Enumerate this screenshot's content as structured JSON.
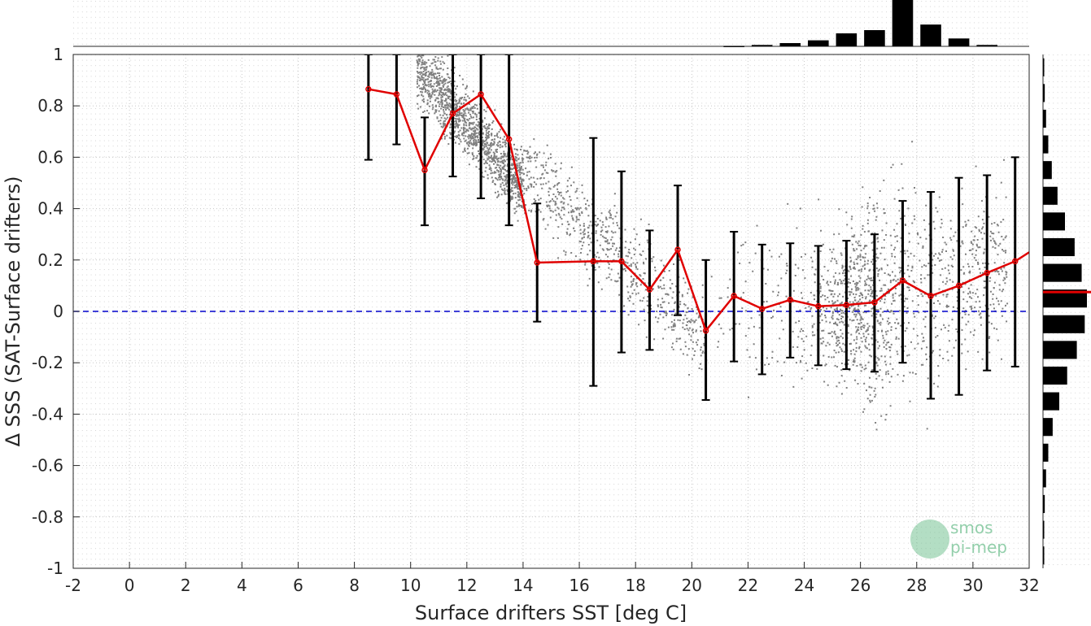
{
  "chart_data": {
    "type": "scatter",
    "xlabel": "Surface drifters SST [deg C]",
    "ylabel": "Δ SSS (SAT-Surface drifters)",
    "xlim": [
      -2,
      32
    ],
    "ylim": [
      -1,
      1
    ],
    "xticks": [
      -2,
      0,
      2,
      4,
      6,
      8,
      10,
      12,
      14,
      16,
      18,
      20,
      22,
      24,
      26,
      28,
      30,
      32
    ],
    "yticks": [
      1,
      0.8,
      0.6,
      0.4,
      0.2,
      0,
      -0.2,
      -0.4,
      -0.6,
      -0.8,
      -1
    ],
    "grid": true,
    "reference_line": {
      "y": 0,
      "color": "#0000cc",
      "style": "dashed"
    },
    "scatter_color": "#808080",
    "mean_line_color": "#e00000",
    "errorbar_color": "#000000",
    "binned_means": {
      "x": [
        8.5,
        9.5,
        10.5,
        11.5,
        12.5,
        13.5,
        14.5,
        16.5,
        17.5,
        18.5,
        19.5,
        20.5,
        21.5,
        22.5,
        23.5,
        24.5,
        25.5,
        26.5,
        27.5,
        28.5,
        29.5,
        30.5,
        31.5,
        32.0
      ],
      "y": [
        0.865,
        0.845,
        0.55,
        0.77,
        0.845,
        0.67,
        0.19,
        0.195,
        0.195,
        0.085,
        0.24,
        -0.075,
        0.06,
        0.01,
        0.045,
        0.02,
        0.025,
        0.035,
        0.12,
        0.06,
        0.1,
        0.15,
        0.195,
        0.23
      ],
      "err_low": [
        0.59,
        0.65,
        0.335,
        0.525,
        0.44,
        0.335,
        -0.04,
        -0.29,
        -0.16,
        -0.15,
        -0.015,
        -0.345,
        -0.195,
        -0.245,
        -0.18,
        -0.21,
        -0.225,
        -0.235,
        -0.2,
        -0.34,
        -0.325,
        -0.23,
        -0.215,
        null
      ],
      "err_high": [
        1.0,
        1.0,
        0.755,
        1.0,
        1.0,
        1.0,
        0.42,
        0.675,
        0.545,
        0.315,
        0.49,
        0.2,
        0.31,
        0.26,
        0.265,
        0.255,
        0.275,
        0.3,
        0.43,
        0.465,
        0.52,
        0.53,
        0.6,
        null
      ]
    },
    "top_histogram": {
      "bins": [
        21.5,
        22.5,
        23.5,
        24.5,
        25.5,
        26.5,
        27.5,
        28.5,
        29.5,
        30.5
      ],
      "values": [
        0.01,
        0.03,
        0.07,
        0.13,
        0.28,
        0.35,
        1.0,
        0.47,
        0.17,
        0.03
      ]
    },
    "right_histogram": {
      "bins": [
        0.95,
        0.85,
        0.75,
        0.65,
        0.55,
        0.45,
        0.35,
        0.25,
        0.15,
        0.05,
        -0.05,
        -0.15,
        -0.25,
        -0.35,
        -0.45,
        -0.55,
        -0.65,
        -0.75,
        -0.85,
        -0.95
      ],
      "values": [
        0.02,
        0.04,
        0.07,
        0.12,
        0.2,
        0.33,
        0.5,
        0.72,
        0.88,
        1.0,
        0.95,
        0.77,
        0.55,
        0.37,
        0.22,
        0.12,
        0.07,
        0.04,
        0.02,
        0.01
      ],
      "mean_marker": 0.075
    }
  },
  "logo": {
    "lines": [
      "smos",
      "pi-mep"
    ]
  }
}
